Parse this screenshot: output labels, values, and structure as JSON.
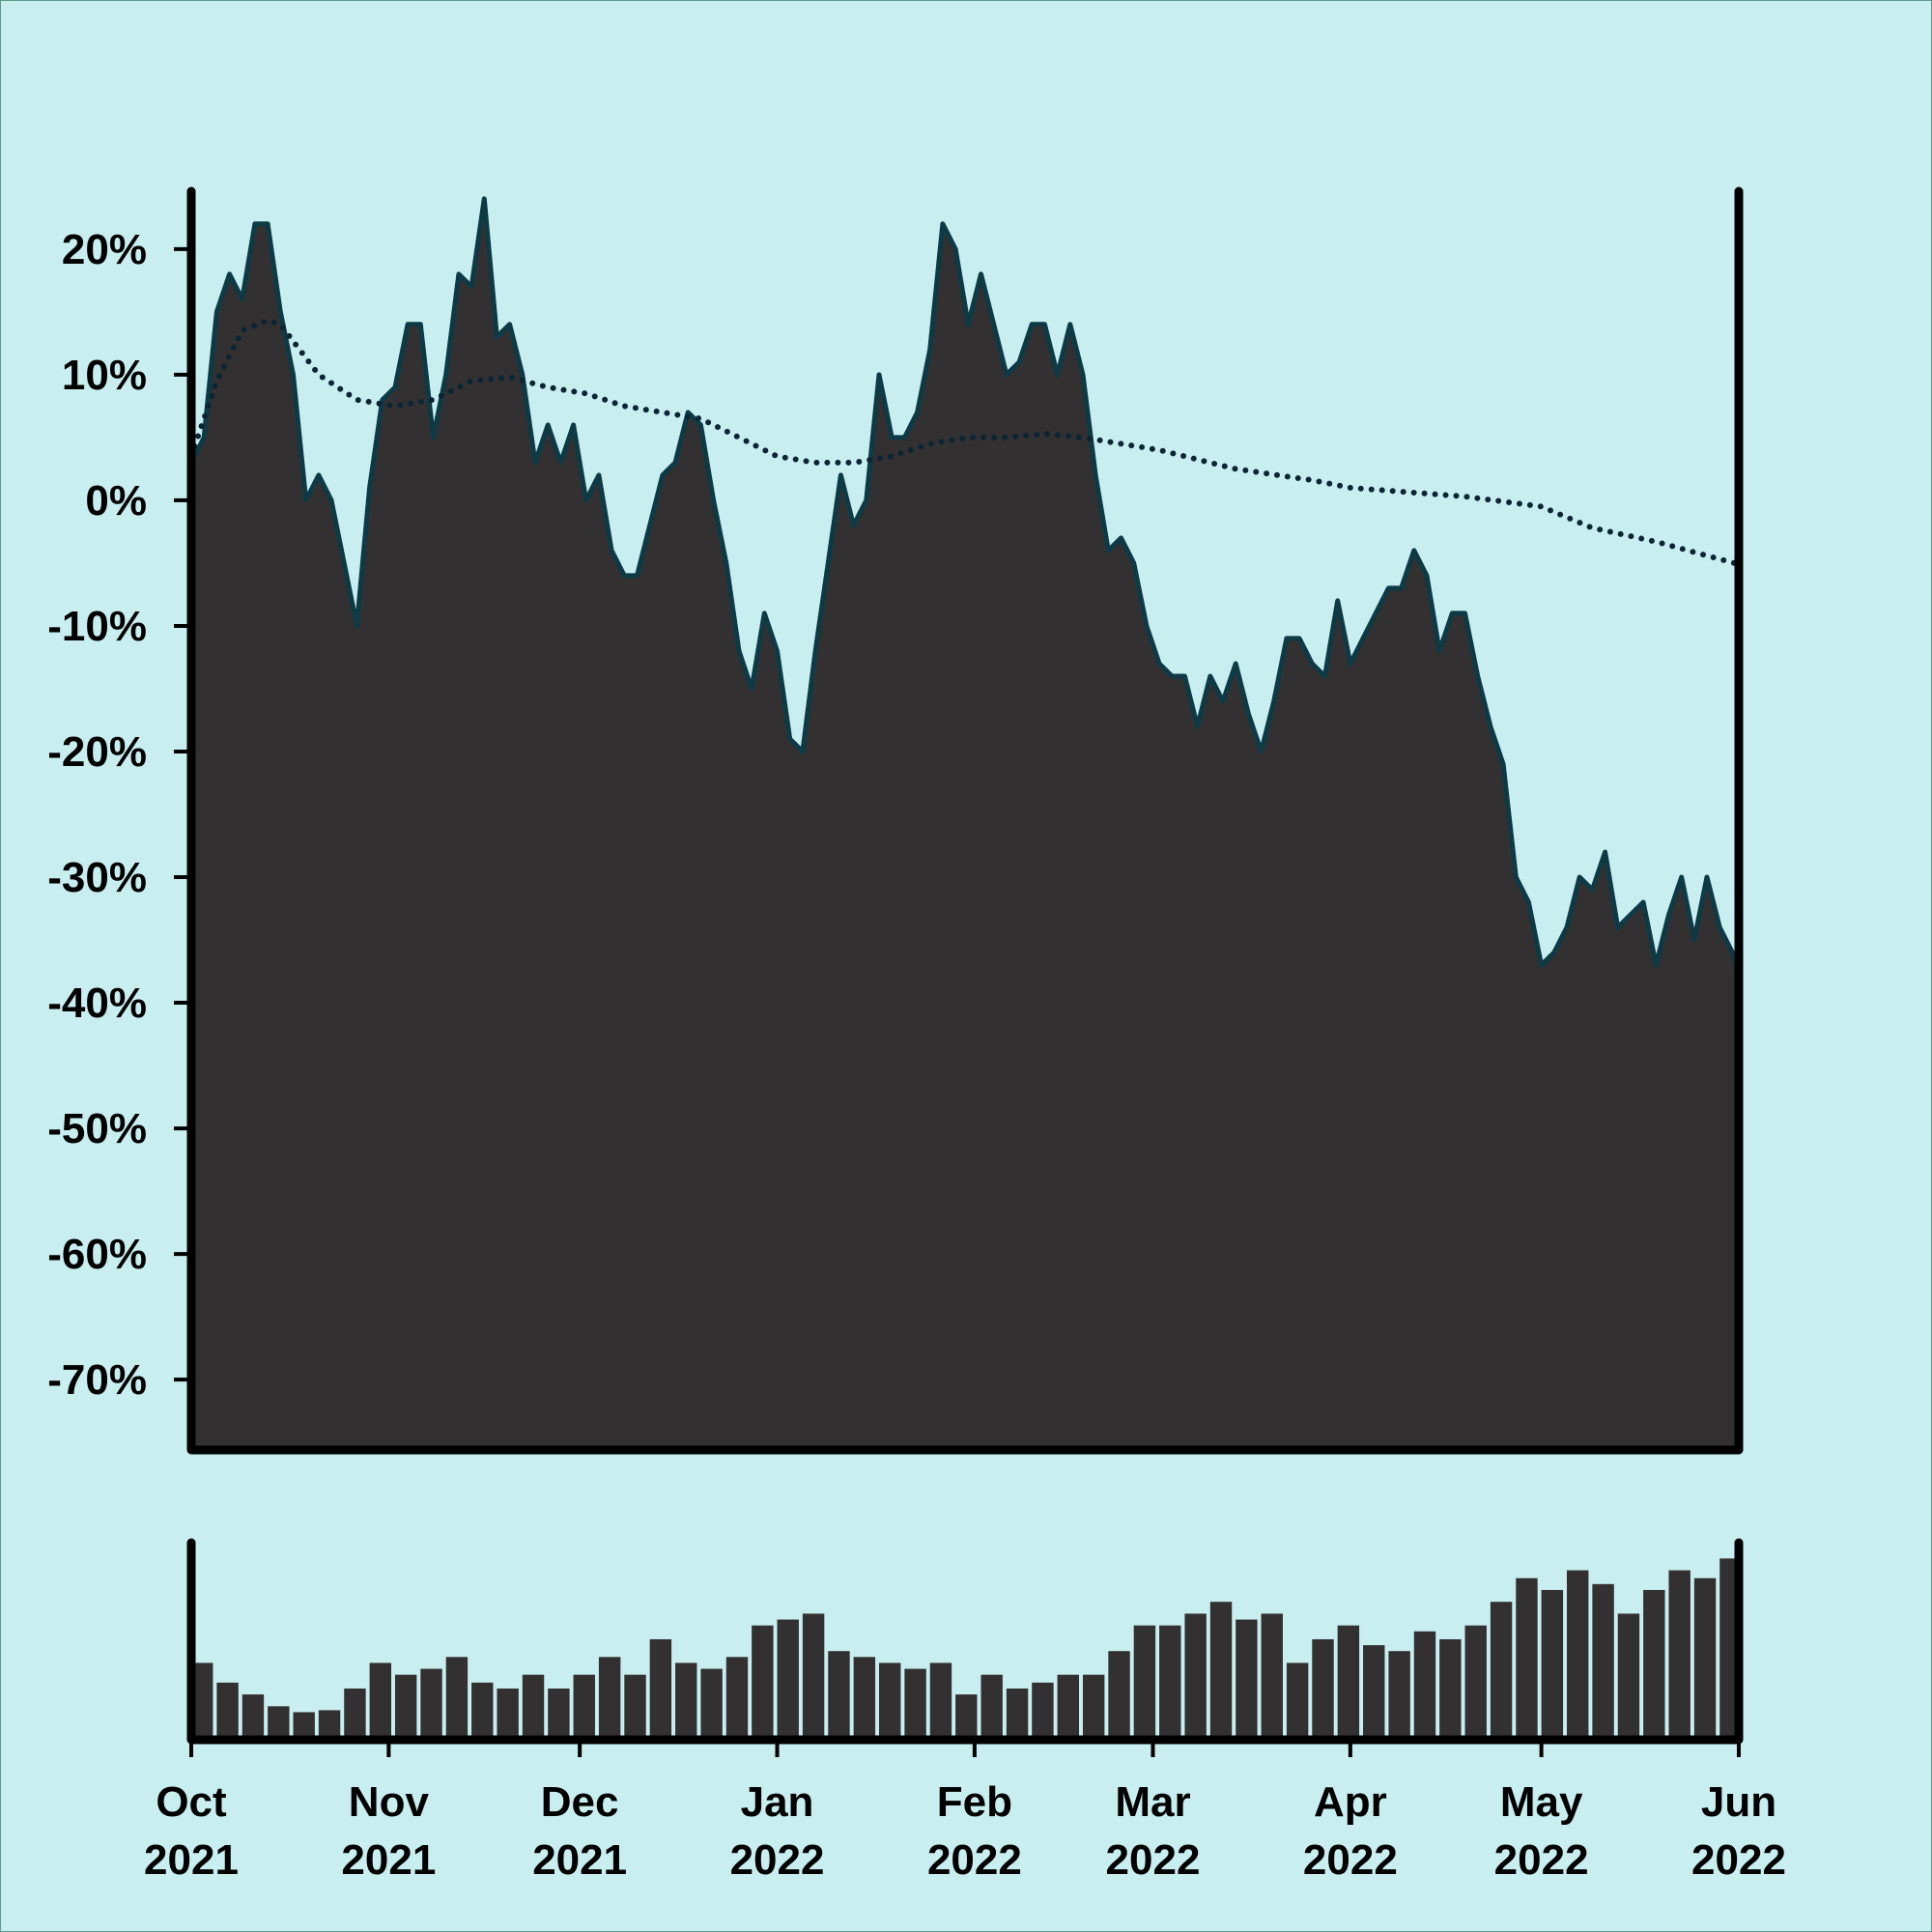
{
  "chart_data": [
    {
      "type": "area",
      "x": [
        0,
        2,
        4,
        6,
        8,
        10,
        12,
        14,
        16,
        18,
        20,
        22,
        24,
        26,
        28,
        30,
        32,
        34,
        36,
        38,
        40,
        42,
        44,
        46,
        48,
        50,
        52,
        54,
        56,
        58,
        60,
        62,
        64,
        66,
        68,
        70,
        72,
        74,
        76,
        78,
        80,
        82,
        84,
        86,
        88,
        90,
        92,
        94,
        96,
        98,
        100,
        102,
        104,
        106,
        108,
        110,
        112,
        114,
        116,
        118,
        120,
        122,
        124,
        126,
        128,
        130,
        132,
        134,
        136,
        138,
        140,
        142,
        144,
        146,
        148,
        150,
        152,
        154,
        156,
        158,
        160,
        162,
        164,
        166,
        168,
        170,
        172,
        174,
        176,
        178,
        180,
        182,
        184,
        186,
        188,
        190,
        192,
        194,
        196,
        198,
        200,
        202,
        204,
        206,
        208,
        210,
        212,
        214,
        216,
        218,
        220,
        222,
        224,
        226,
        228,
        230,
        232,
        234,
        236,
        238,
        240,
        242,
        243
      ],
      "values": [
        3,
        5,
        15,
        18,
        16,
        22,
        22,
        15,
        10,
        0,
        2,
        0,
        -5,
        -10,
        1,
        8,
        9,
        14,
        14,
        5,
        10,
        18,
        17,
        24,
        13,
        14,
        10,
        3,
        6,
        3,
        6,
        0,
        2,
        -4,
        -6,
        -6,
        -2,
        2,
        3,
        7,
        6,
        0,
        -5,
        -12,
        -15,
        -9,
        -12,
        -19,
        -20,
        -12,
        -5,
        2,
        -2,
        0,
        10,
        5,
        5,
        7,
        12,
        22,
        20,
        14,
        18,
        14,
        10,
        11,
        14,
        14,
        10,
        14,
        10,
        2,
        -4,
        -3,
        -5,
        -10,
        -13,
        -14,
        -14,
        -18,
        -14,
        -16,
        -13,
        -17,
        -20,
        -16,
        -11,
        -11,
        -13,
        -14,
        -8,
        -13,
        -11,
        -9,
        -7,
        -7,
        -4,
        -6,
        -12,
        -9,
        -9,
        -14,
        -18,
        -21,
        -30,
        -32,
        -37,
        -36,
        -34,
        -30,
        -31,
        -28,
        -34,
        -33,
        -32,
        -37,
        -33,
        -30,
        -35,
        -30,
        -34,
        -36,
        -38
      ],
      "color": "#333031",
      "line_color": "#0e3a46",
      "moving_average": {
        "x": [
          0,
          4,
          8,
          12,
          14,
          20,
          26,
          32,
          38,
          44,
          50,
          56,
          62,
          68,
          74,
          80,
          86,
          92,
          98,
          104,
          110,
          116,
          122,
          128,
          134,
          140,
          146,
          152,
          164,
          176,
          182,
          200,
          212,
          220,
          230,
          243
        ],
        "values": [
          3.5,
          9.5,
          13.5,
          14.3,
          14,
          10,
          8,
          7.5,
          8,
          9.5,
          9.8,
          9,
          8.5,
          7.5,
          7,
          6.5,
          5,
          3.5,
          3,
          3,
          3.5,
          4.5,
          5,
          5,
          5.3,
          5,
          4.5,
          4,
          2.5,
          1.6,
          1,
          0.3,
          -0.5,
          -2.2,
          -3.3,
          -5.1
        ],
        "color": "#0c2535",
        "style": "dotted"
      },
      "xlim": [
        0,
        243
      ],
      "ylim": [
        -75.6,
        24.6
      ],
      "yticks": [
        {
          "value": -70,
          "label": "-70%"
        },
        {
          "value": -60,
          "label": "-60%"
        },
        {
          "value": -50,
          "label": "-50%"
        },
        {
          "value": -40,
          "label": "-40%"
        },
        {
          "value": -30,
          "label": "-30%"
        },
        {
          "value": -20,
          "label": "-20%"
        },
        {
          "value": -10,
          "label": "-10%"
        },
        {
          "value": 0,
          "label": "0%"
        },
        {
          "value": 10,
          "label": "10%"
        },
        {
          "value": 20,
          "label": "20%"
        }
      ]
    },
    {
      "type": "bar",
      "x": [
        0,
        4,
        8,
        12,
        16,
        20,
        24,
        28,
        32,
        36,
        40,
        44,
        48,
        52,
        56,
        60,
        64,
        68,
        72,
        76,
        80,
        84,
        88,
        92,
        96,
        100,
        104,
        108,
        112,
        116,
        120,
        124,
        128,
        132,
        136,
        140,
        144,
        148,
        152,
        156,
        160,
        164,
        168,
        172,
        176,
        180,
        184,
        188,
        192,
        196,
        200,
        204,
        208,
        212,
        216,
        220,
        224,
        228,
        232,
        236,
        240
      ],
      "values": [
        39,
        29,
        23,
        17,
        14,
        15,
        26,
        39,
        33,
        36,
        42,
        29,
        26,
        33,
        26,
        33,
        42,
        33,
        51,
        39,
        36,
        42,
        58,
        61,
        64,
        45,
        42,
        39,
        36,
        39,
        23,
        33,
        26,
        29,
        33,
        33,
        45,
        58,
        58,
        64,
        70,
        61,
        64,
        39,
        51,
        58,
        48,
        45,
        55,
        51,
        58,
        70,
        82,
        76,
        86,
        79,
        64,
        76,
        86,
        82,
        92
      ],
      "color": "#333031",
      "xlim": [
        0,
        243
      ],
      "ylim": [
        0,
        100
      ],
      "xticks": [
        {
          "value": 0,
          "label": "Oct\n2021"
        },
        {
          "value": 31,
          "label": "Nov\n2021"
        },
        {
          "value": 61,
          "label": "Dec\n2021"
        },
        {
          "value": 92,
          "label": "Jan\n2022"
        },
        {
          "value": 123,
          "label": "Feb\n2022"
        },
        {
          "value": 151,
          "label": "Mar\n2022"
        },
        {
          "value": 182,
          "label": "Apr\n2022"
        },
        {
          "value": 212,
          "label": "May\n2022"
        },
        {
          "value": 243,
          "label": "Jun\n2022"
        }
      ]
    }
  ]
}
